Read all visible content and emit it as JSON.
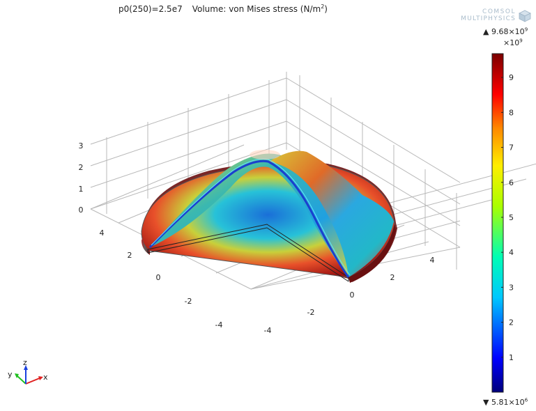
{
  "title": {
    "main": "p0(250)=2.5e7",
    "subtitle": "Volume: von Mises stress (N/m",
    "subtitle_exp": "2",
    "subtitle_end": ")"
  },
  "logo": {
    "line1": "COMSOL",
    "line2": "MULTIPHYSICS"
  },
  "colorbar": {
    "max_label": "9.68×10",
    "max_exp": "9",
    "multiplier_label": "×10",
    "multiplier_exp": "9",
    "min_label": "5.81×10",
    "min_exp": "6",
    "ticks": [
      "1",
      "2",
      "3",
      "4",
      "5",
      "6",
      "7",
      "8",
      "9"
    ],
    "colors": [
      "#00007a",
      "#0000ff",
      "#00c8ff",
      "#00ffb4",
      "#aaff00",
      "#ffee00",
      "#ff8800",
      "#ff0000",
      "#7a0000"
    ]
  },
  "triad": {
    "x": "x",
    "y": "y",
    "z": "z"
  },
  "chart_data": {
    "type": "surface3d",
    "title": "p0(250)=2.5e7",
    "subtitle": "Volume: von Mises stress (N/m2)",
    "x_ticks": [
      "-4",
      "-2",
      "0",
      "2",
      "4"
    ],
    "y_ticks": [
      "4",
      "2",
      "0",
      "-2",
      "-4"
    ],
    "z_ticks": [
      "0",
      "1",
      "2",
      "3"
    ],
    "colorbar_min": 5810000,
    "colorbar_max": 9680000000,
    "colorbar_multiplier": "×10^9"
  }
}
